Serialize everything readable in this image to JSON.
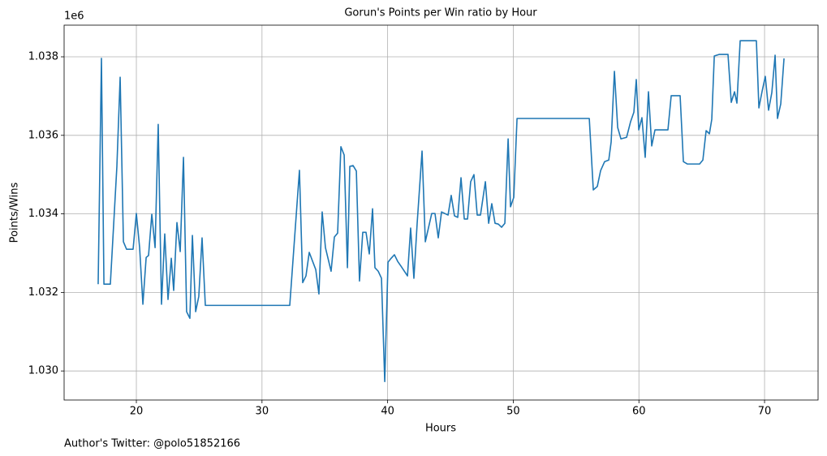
{
  "chart_data": {
    "type": "line",
    "title": "Gorun's Points per Win ratio by Hour",
    "x_label": "Hours",
    "y_label": "Points/Wins",
    "y_offset_label": "1e6",
    "footnote": "Author's Twitter: @polo51852166",
    "grid": true,
    "xlim": [
      14.25,
      74.26
    ],
    "ylim": [
      1.02926,
      1.038806
    ],
    "xticks": [
      20,
      30,
      40,
      50,
      60,
      70
    ],
    "yticks": [
      {
        "value": 1.03,
        "label": "1.030"
      },
      {
        "value": 1.032,
        "label": "1.032"
      },
      {
        "value": 1.034,
        "label": "1.034"
      },
      {
        "value": 1.036,
        "label": "1.036"
      },
      {
        "value": 1.038,
        "label": "1.038"
      }
    ],
    "x": [
      16.96,
      17.22,
      17.42,
      17.93,
      18.45,
      18.71,
      18.97,
      19.22,
      19.74,
      20.0,
      20.26,
      20.52,
      20.78,
      20.97,
      21.23,
      21.49,
      21.74,
      22.0,
      22.26,
      22.52,
      22.78,
      22.97,
      23.23,
      23.49,
      23.75,
      24.0,
      24.26,
      24.46,
      24.72,
      24.97,
      25.23,
      25.49,
      32.21,
      32.98,
      33.24,
      33.5,
      33.76,
      34.28,
      34.53,
      34.79,
      35.05,
      35.5,
      35.76,
      36.02,
      36.28,
      36.54,
      36.8,
      36.99,
      37.25,
      37.51,
      37.76,
      38.02,
      38.28,
      38.54,
      38.8,
      38.99,
      39.25,
      39.51,
      39.77,
      40.03,
      40.28,
      40.54,
      40.8,
      41.06,
      41.58,
      41.83,
      42.09,
      42.35,
      42.74,
      43.0,
      43.51,
      43.77,
      44.03,
      44.29,
      44.81,
      45.06,
      45.32,
      45.58,
      45.84,
      46.1,
      46.36,
      46.61,
      46.87,
      47.13,
      47.39,
      47.78,
      48.04,
      48.29,
      48.55,
      48.81,
      49.07,
      49.33,
      49.59,
      49.78,
      50.04,
      50.3,
      56.05,
      56.37,
      56.69,
      56.95,
      57.27,
      57.6,
      57.79,
      58.05,
      58.31,
      58.57,
      59.02,
      59.34,
      59.6,
      59.79,
      59.99,
      60.24,
      60.5,
      60.76,
      61.02,
      61.28,
      62.31,
      62.57,
      63.28,
      63.54,
      63.86,
      64.83,
      65.09,
      65.35,
      65.61,
      65.8,
      66.0,
      66.38,
      67.09,
      67.35,
      67.61,
      67.8,
      68.06,
      69.35,
      69.55,
      69.81,
      70.06,
      70.32,
      70.58,
      70.84,
      71.03,
      71.29,
      71.55
    ],
    "series": [
      {
        "color": "#1f77b4",
        "values": [
          1.03221,
          1.03796,
          1.03221,
          1.03221,
          1.03521,
          1.03748,
          1.03329,
          1.0331,
          1.0331,
          1.03401,
          1.03314,
          1.0317,
          1.03289,
          1.03294,
          1.03399,
          1.03314,
          1.03628,
          1.0317,
          1.03349,
          1.03182,
          1.03287,
          1.03205,
          1.03378,
          1.03304,
          1.03544,
          1.03151,
          1.03134,
          1.03345,
          1.03151,
          1.0319,
          1.03339,
          1.03167,
          1.03167,
          1.03511,
          1.03225,
          1.03242,
          1.03302,
          1.03258,
          1.03196,
          1.03405,
          1.03314,
          1.03254,
          1.03341,
          1.03351,
          1.03571,
          1.0355,
          1.03263,
          1.03521,
          1.03523,
          1.03509,
          1.03229,
          1.03353,
          1.03353,
          1.03298,
          1.03413,
          1.03263,
          1.03254,
          1.03236,
          1.02973,
          1.03277,
          1.03287,
          1.03296,
          1.03279,
          1.03267,
          1.03242,
          1.03364,
          1.03236,
          1.03376,
          1.0356,
          1.03329,
          1.03401,
          1.03401,
          1.03339,
          1.03405,
          1.03397,
          1.03447,
          1.03395,
          1.03391,
          1.03492,
          1.03387,
          1.03387,
          1.03482,
          1.035,
          1.03397,
          1.03397,
          1.03482,
          1.03376,
          1.03426,
          1.03376,
          1.03374,
          1.03366,
          1.03376,
          1.03591,
          1.03418,
          1.03442,
          1.03643,
          1.03643,
          1.03461,
          1.0347,
          1.0351,
          1.03533,
          1.03537,
          1.03583,
          1.03763,
          1.0362,
          1.03591,
          1.03595,
          1.03635,
          1.03659,
          1.03742,
          1.03614,
          1.03645,
          1.03544,
          1.03711,
          1.03573,
          1.03614,
          1.03614,
          1.03701,
          1.03701,
          1.03533,
          1.03527,
          1.03527,
          1.03537,
          1.03612,
          1.03604,
          1.03641,
          1.03802,
          1.03806,
          1.03806,
          1.03684,
          1.03711,
          1.03682,
          1.03841,
          1.03841,
          1.0367,
          1.03713,
          1.0375,
          1.03664,
          1.03709,
          1.03804,
          1.03643,
          1.0368,
          1.03796
        ]
      }
    ]
  }
}
